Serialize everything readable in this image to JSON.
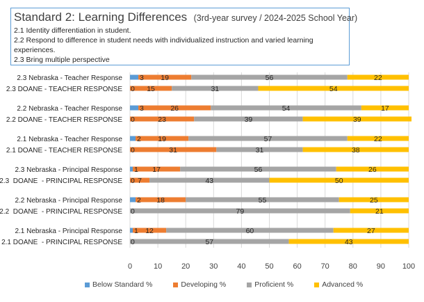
{
  "header": {
    "title": "Standard 2: Learning Differences",
    "subtitle": "(3rd-year survey / 2024-2025 School Year)",
    "lines": [
      "2.1 Identity differentiation in student.",
      "2.2 Respond to difference in student needs with individualized instruction and varied learning experiences.",
      "2.3 Bring multiple perspective"
    ]
  },
  "colors": {
    "below": "#5b9bd5",
    "developing": "#ed7d31",
    "proficient": "#a5a5a5",
    "advanced": "#ffc000",
    "grid": "#d9d9d9",
    "box_border": "#5b9bd5"
  },
  "chart_data": {
    "type": "bar",
    "orientation": "horizontal",
    "stacked": true,
    "xlim": [
      0,
      100
    ],
    "xticks": [
      "0",
      "10",
      "20",
      "30",
      "40",
      "50",
      "60",
      "70",
      "80",
      "90",
      "100"
    ],
    "grid": true,
    "legend_position": "bottom",
    "categories": [
      "2.3 Nebraska - Teacher Response",
      "2.3 DOANE - TEACHER RESPONSE",
      "2.2 Nebraska - Teacher Response",
      "2.2 DOANE - TEACHER RESPONSE",
      "2.1 Nebraska - Teacher Response",
      "2.1 DOANE - TEACHER RESPONSE",
      "2.3 Nebraska - Principal Response",
      "2.3  DOANE  - PRINCIPAL RESPONSE",
      "2.2 Nebraska - Principal Response",
      "2.2  DOANE  - PRINCIPAL RESPONSE",
      "2.1 Nebraska - Principal Response",
      "2.1 DOANE  - PRINCIPAL RESPONSE"
    ],
    "series": [
      {
        "name": "Below Standard %",
        "key": "below",
        "values": [
          3,
          0,
          3,
          0,
          2,
          0,
          1,
          0,
          2,
          0,
          1,
          0
        ]
      },
      {
        "name": "Developing %",
        "key": "developing",
        "values": [
          19,
          15,
          26,
          23,
          19,
          31,
          17,
          7,
          18,
          0,
          12,
          0
        ]
      },
      {
        "name": "Proficient %",
        "key": "proficient",
        "values": [
          56,
          31,
          54,
          39,
          57,
          31,
          56,
          43,
          55,
          79,
          60,
          57
        ]
      },
      {
        "name": "Advanced %",
        "key": "advanced",
        "values": [
          22,
          54,
          17,
          39,
          22,
          38,
          26,
          50,
          25,
          21,
          27,
          43
        ]
      }
    ]
  }
}
